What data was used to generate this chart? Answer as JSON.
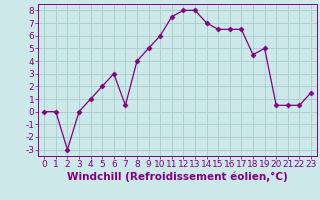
{
  "x": [
    0,
    1,
    2,
    3,
    4,
    5,
    6,
    7,
    8,
    9,
    10,
    11,
    12,
    13,
    14,
    15,
    16,
    17,
    18,
    19,
    20,
    21,
    22,
    23
  ],
  "y": [
    0,
    0,
    -3,
    0,
    1,
    2,
    3,
    0.5,
    4,
    5,
    6,
    7.5,
    8,
    8,
    7,
    6.5,
    6.5,
    6.5,
    4.5,
    5,
    0.5,
    0.5,
    0.5,
    1.5
  ],
  "line_color": "#800080",
  "marker": "D",
  "marker_size": 2.5,
  "bg_color": "#cce8e8",
  "grid_color": "#aacccc",
  "xlabel": "Windchill (Refroidissement éolien,°C)",
  "xlim": [
    -0.5,
    23.5
  ],
  "ylim": [
    -3.5,
    8.5
  ],
  "yticks": [
    -3,
    -2,
    -1,
    0,
    1,
    2,
    3,
    4,
    5,
    6,
    7,
    8
  ],
  "xticks": [
    0,
    1,
    2,
    3,
    4,
    5,
    6,
    7,
    8,
    9,
    10,
    11,
    12,
    13,
    14,
    15,
    16,
    17,
    18,
    19,
    20,
    21,
    22,
    23
  ],
  "label_color": "#800080",
  "tick_color": "#800080",
  "spine_color": "#800080",
  "font_size": 6.5,
  "xlabel_fontsize": 7.5
}
